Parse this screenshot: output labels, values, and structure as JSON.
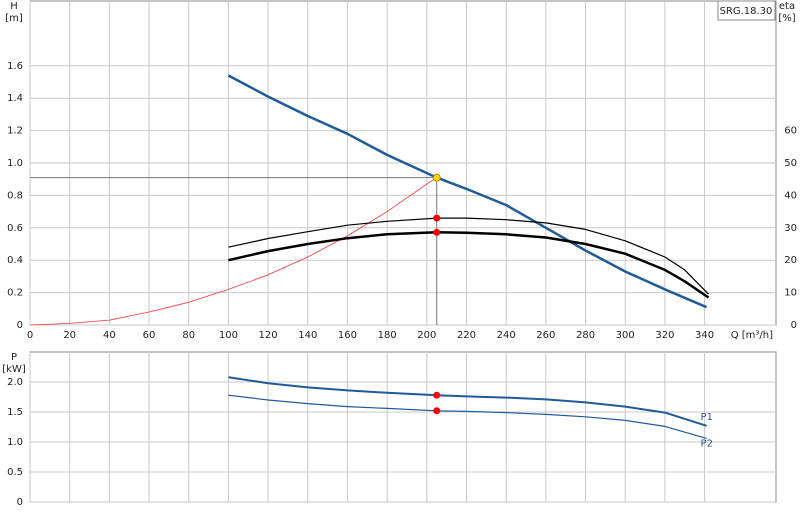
{
  "chart_data": [
    {
      "type": "line",
      "title": "SRG.18.30",
      "xlabel": "Q [m³/h]",
      "ylabel": "H",
      "yunit": "[m]",
      "y2label": "eta",
      "y2unit": "[%]",
      "xlim": [
        0,
        376
      ],
      "xticks": [
        0,
        20,
        40,
        60,
        80,
        100,
        120,
        140,
        160,
        180,
        200,
        220,
        240,
        260,
        280,
        300,
        320,
        340
      ],
      "ylim": [
        0,
        2
      ],
      "yticks": [
        0,
        0.2,
        0.4,
        0.6,
        0.8,
        {
          "value": 1,
          "label": "1.0"
        },
        1.2,
        1.4,
        1.6
      ],
      "y2lim": [
        0,
        100
      ],
      "y2ticks": [
        0,
        10,
        20,
        30,
        40,
        50,
        60
      ],
      "grid": true,
      "series": [
        {
          "color": "#ff3333",
          "width": 0.8,
          "x": [
            0,
            20,
            40,
            60,
            80,
            100,
            120,
            140,
            160,
            180,
            200,
            205
          ],
          "values": [
            0,
            0.01,
            0.03,
            0.08,
            0.14,
            0.22,
            0.31,
            0.42,
            0.55,
            0.7,
            0.87,
            0.91
          ]
        },
        {
          "color": "#1f5a9a",
          "width": 2.5,
          "x": [
            100,
            120,
            140,
            160,
            180,
            205,
            220,
            240,
            260,
            280,
            300,
            320,
            341
          ],
          "values": [
            1.54,
            1.41,
            1.29,
            1.18,
            1.05,
            0.91,
            0.84,
            0.74,
            0.6,
            0.46,
            0.33,
            0.22,
            0.11
          ]
        },
        {
          "color": "#000000",
          "width": 1.2,
          "axis": "y2",
          "x": [
            100,
            120,
            140,
            160,
            180,
            205,
            220,
            240,
            260,
            280,
            300,
            320,
            330,
            342
          ],
          "values": [
            24,
            26.7,
            28.8,
            30.8,
            32,
            33,
            33,
            32.5,
            31.5,
            29.5,
            26,
            21,
            17,
            9.5
          ]
        },
        {
          "color": "#000000",
          "width": 2.5,
          "axis": "y2",
          "x": [
            100,
            120,
            140,
            160,
            180,
            205,
            220,
            240,
            260,
            280,
            300,
            320,
            330,
            342
          ],
          "values": [
            20,
            22.8,
            25,
            26.8,
            28,
            28.6,
            28.5,
            28,
            27,
            25,
            22,
            17,
            13.5,
            8.5
          ]
        }
      ],
      "points": [
        {
          "x": 205,
          "y": 0.91,
          "color": "#ffd700",
          "guides": true
        },
        {
          "x": 205,
          "y": 33,
          "axis": "y2",
          "color": "#ff0000"
        },
        {
          "x": 205,
          "y": 28.6,
          "axis": "y2",
          "color": "#ff0000"
        }
      ]
    },
    {
      "type": "line",
      "ylabel": "P",
      "yunit": "[kW]",
      "xlim": [
        0,
        376
      ],
      "xticks": [
        0,
        20,
        40,
        60,
        80,
        100,
        120,
        140,
        160,
        180,
        200,
        220,
        240,
        260,
        280,
        300,
        320,
        340
      ],
      "xtick_labels": false,
      "ylim": [
        0,
        2.5
      ],
      "yticks": [
        0,
        0.5,
        {
          "value": 1,
          "label": "1.0"
        },
        1.5,
        {
          "value": 2,
          "label": "2.0"
        }
      ],
      "grid": true,
      "series": [
        {
          "name": "P1",
          "label_position": "above",
          "color": "#1f5a9a",
          "width": 2,
          "x": [
            100,
            120,
            140,
            160,
            180,
            205,
            220,
            240,
            260,
            280,
            300,
            320,
            341
          ],
          "values": [
            2.08,
            1.98,
            1.91,
            1.86,
            1.82,
            1.78,
            1.76,
            1.74,
            1.71,
            1.66,
            1.59,
            1.49,
            1.27
          ]
        },
        {
          "name": "P2",
          "label_position": "below",
          "color": "#1f5a9a",
          "width": 1.2,
          "x": [
            100,
            120,
            140,
            160,
            180,
            205,
            220,
            240,
            260,
            280,
            300,
            320,
            341
          ],
          "values": [
            1.78,
            1.7,
            1.64,
            1.59,
            1.56,
            1.52,
            1.51,
            1.49,
            1.46,
            1.42,
            1.36,
            1.26,
            1.06
          ]
        }
      ],
      "points": [
        {
          "x": 205,
          "y": 1.78,
          "color": "#ff0000"
        },
        {
          "x": 205,
          "y": 1.52,
          "color": "#ff0000"
        }
      ]
    }
  ]
}
